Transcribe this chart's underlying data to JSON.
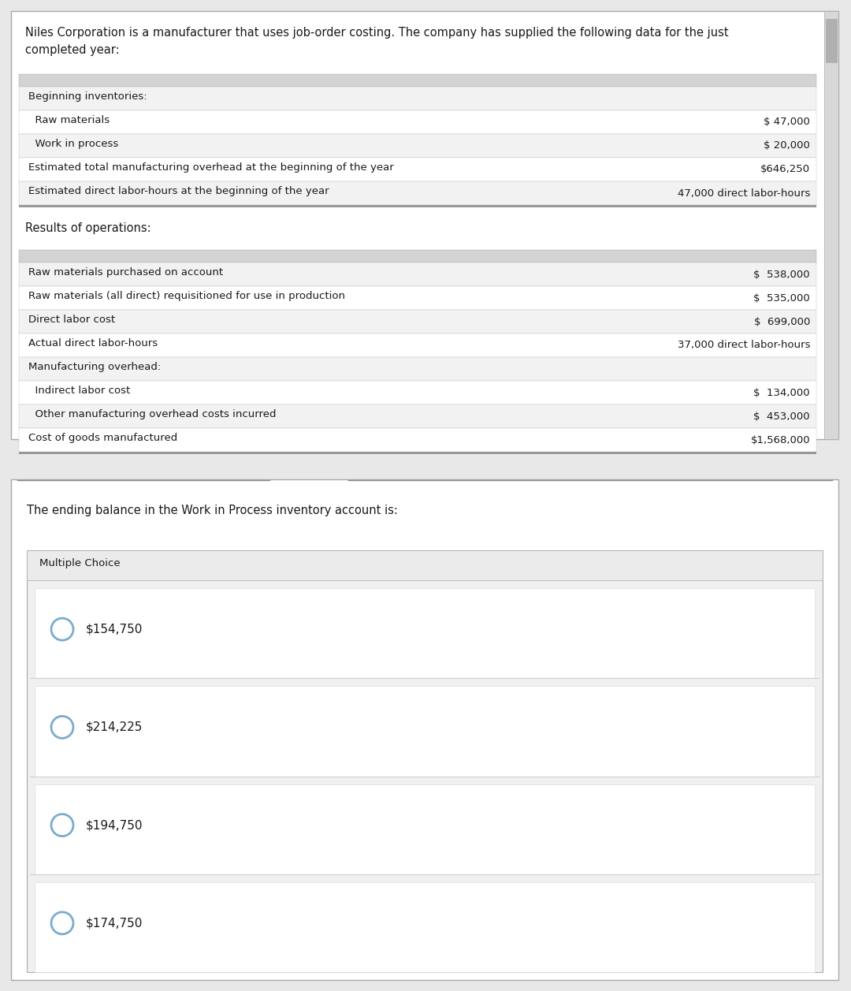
{
  "title_text": "Niles Corporation is a manufacturer that uses job-order costing. The company has supplied the following data for the just\ncompleted year:",
  "section1_rows": [
    {
      "label": "Beginning inventories:",
      "value": "",
      "indent": 0
    },
    {
      "label": "  Raw materials",
      "value": "$ 47,000",
      "indent": 1
    },
    {
      "label": "  Work in process",
      "value": "$ 20,000",
      "indent": 1
    },
    {
      "label": "Estimated total manufacturing overhead at the beginning of the year",
      "value": "$646,250",
      "indent": 0
    },
    {
      "label": "Estimated direct labor-hours at the beginning of the year",
      "value": "47,000 direct labor-hours",
      "indent": 0
    }
  ],
  "results_label": "Results of operations:",
  "section2_rows": [
    {
      "label": "Raw materials purchased on account",
      "value": "$  538,000"
    },
    {
      "label": "Raw materials (all direct) requisitioned for use in production",
      "value": "$  535,000"
    },
    {
      "label": "Direct labor cost",
      "value": "$  699,000"
    },
    {
      "label": "Actual direct labor-hours",
      "value": "37,000 direct labor-hours"
    },
    {
      "label": "Manufacturing overhead:",
      "value": ""
    },
    {
      "label": "  Indirect labor cost",
      "value": "$  134,000"
    },
    {
      "label": "  Other manufacturing overhead costs incurred",
      "value": "$  453,000"
    },
    {
      "label": "Cost of goods manufactured",
      "value": "$1,568,000"
    }
  ],
  "question_text": "The ending balance in the Work in Process inventory account is:",
  "mc_label": "Multiple Choice",
  "choices": [
    "$154,750",
    "$214,225",
    "$194,750",
    "$174,750"
  ],
  "page_bg": "#e8e8e8",
  "white_bg": "#ffffff",
  "table_header_bg": "#d3d3d3",
  "row_bg_light": "#f2f2f2",
  "row_bg_white": "#ffffff",
  "mc_header_bg": "#ebebeb",
  "mc_outer_bg": "#f0f0f0",
  "choice_bg": "#ffffff",
  "border_color": "#aaaaaa",
  "border_dark": "#888888",
  "text_color": "#1a1a1a",
  "choice_circle_color": "#7aaccc",
  "scrollbar_bg": "#d8d8d8",
  "scrollbar_thumb": "#b0b0b0"
}
